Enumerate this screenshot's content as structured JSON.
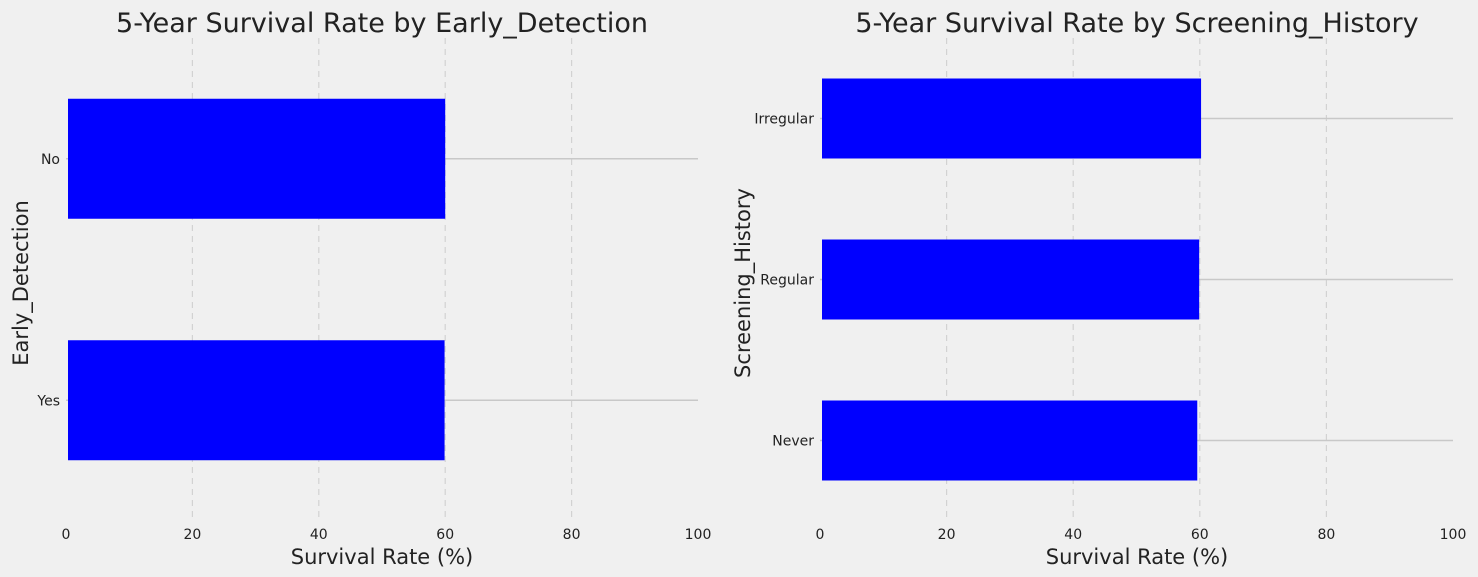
{
  "chart_data": [
    {
      "type": "bar",
      "orientation": "horizontal",
      "title": "5-Year Survival Rate by Early_Detection",
      "xlabel": "Survival Rate (%)",
      "ylabel": "Early_Detection",
      "categories": [
        "No",
        "Yes"
      ],
      "values": [
        60.0,
        59.9
      ],
      "xlim": [
        0,
        100
      ],
      "xticks": [
        0,
        20,
        40,
        60,
        80,
        100
      ],
      "bar_color": "#0000ff",
      "grid": true
    },
    {
      "type": "bar",
      "orientation": "horizontal",
      "title": "5-Year Survival Rate by Screening_History",
      "xlabel": "Survival Rate (%)",
      "ylabel": "Screening_History",
      "categories": [
        "Irregular",
        "Regular",
        "Never"
      ],
      "values": [
        60.2,
        59.9,
        59.6
      ],
      "xlim": [
        0,
        100
      ],
      "xticks": [
        0,
        20,
        40,
        60,
        80,
        100
      ],
      "bar_color": "#0000ff",
      "grid": true
    }
  ]
}
